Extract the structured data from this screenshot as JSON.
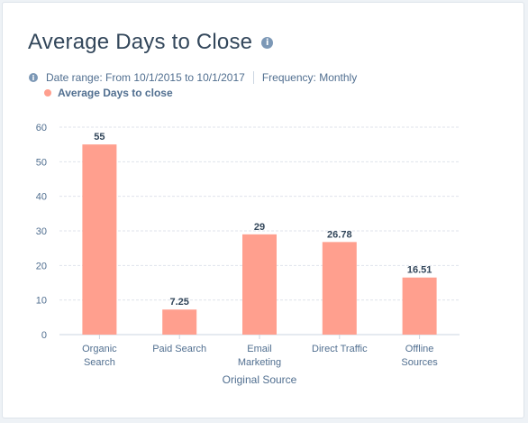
{
  "card": {
    "title": "Average Days to Close",
    "info_icon": "info-icon",
    "date_range": "Date range: From 10/1/2015 to 10/1/2017",
    "frequency": "Frequency: Monthly"
  },
  "colors": {
    "bar": "#ff9f8e",
    "grid": "#dfe3eb",
    "axis": "#cbd6e2",
    "text": "#516f90"
  },
  "chart_data": {
    "type": "bar",
    "categories": [
      [
        "Organic",
        "Search"
      ],
      [
        "Paid Search"
      ],
      [
        "Email",
        "Marketing"
      ],
      [
        "Direct Traffic"
      ],
      [
        "Offline",
        "Sources"
      ]
    ],
    "values": [
      55,
      7.25,
      29,
      26.78,
      16.51
    ],
    "value_labels": [
      "55",
      "7.25",
      "29",
      "26.78",
      "16.51"
    ],
    "series": [
      {
        "name": "Average Days to close",
        "values": [
          55,
          7.25,
          29,
          26.78,
          16.51
        ]
      }
    ],
    "xlabel": "Original Source",
    "ylabel": "",
    "ylim": [
      0,
      60
    ],
    "yticks": [
      0,
      10,
      20,
      30,
      40,
      50,
      60
    ],
    "grid": true,
    "legend": "top-left"
  }
}
